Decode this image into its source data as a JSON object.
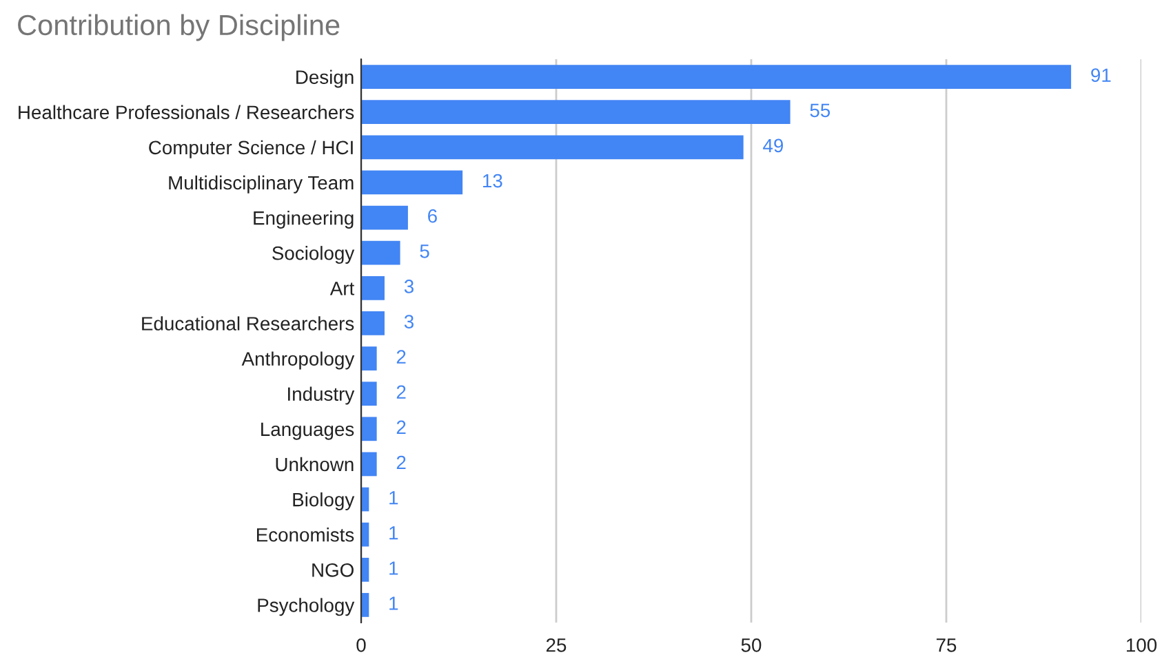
{
  "chart_data": {
    "type": "bar",
    "orientation": "horizontal",
    "title": "Contribution by Discipline",
    "categories": [
      "Design",
      "Healthcare Professionals / Researchers",
      "Computer Science / HCI",
      "Multidisciplinary Team",
      "Engineering",
      "Sociology",
      "Art",
      "Educational Researchers",
      "Anthropology",
      "Industry",
      "Languages",
      "Unknown",
      "Biology",
      "Economists",
      "NGO",
      "Psychology"
    ],
    "values": [
      91,
      55,
      49,
      13,
      6,
      5,
      3,
      3,
      2,
      2,
      2,
      2,
      1,
      1,
      1,
      1
    ],
    "color": "#4285f4",
    "xlim": [
      0,
      100
    ],
    "xticks": [
      0,
      25,
      50,
      75,
      100
    ],
    "grid": "x",
    "data_labels": true,
    "legend": false
  }
}
